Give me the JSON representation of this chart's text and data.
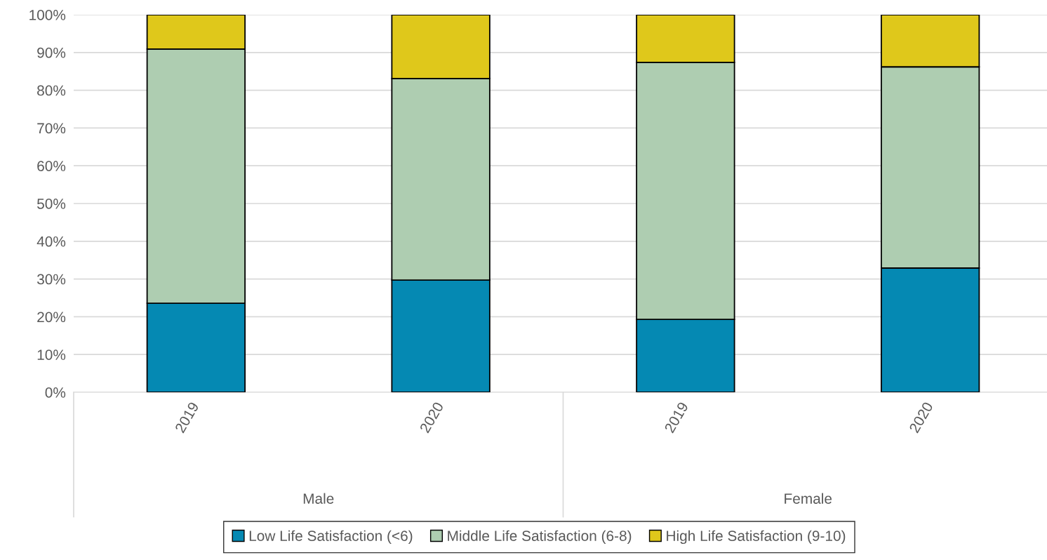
{
  "chart_data": {
    "type": "bar",
    "stacked": true,
    "categories": [
      "2019",
      "2020",
      "2019",
      "2020"
    ],
    "series": [
      {
        "name": "Low Life Satisfaction (<6)",
        "color": "#0589b3",
        "values": [
          23.6,
          29.7,
          19.3,
          32.9
        ]
      },
      {
        "name": "Middle Life Satisfaction (6-8)",
        "color": "#aecdb1",
        "values": [
          67.3,
          53.4,
          68.1,
          53.3
        ]
      },
      {
        "name": "High Life Satisfaction (9-10)",
        "color": "#dfc81b",
        "values": [
          9.1,
          16.9,
          12.6,
          13.8
        ]
      }
    ],
    "annotations": [
      "Male",
      "Female"
    ],
    "ylim": [
      0,
      100
    ],
    "yticks": [
      {
        "value": 0,
        "label": "0%"
      },
      {
        "value": 10,
        "label": "10%"
      },
      {
        "value": 20,
        "label": "20%"
      },
      {
        "value": 30,
        "label": "30%"
      },
      {
        "value": 40,
        "label": "40%"
      },
      {
        "value": 50,
        "label": "50%"
      },
      {
        "value": 60,
        "label": "60%"
      },
      {
        "value": 70,
        "label": "70%"
      },
      {
        "value": 80,
        "label": "80%"
      },
      {
        "value": 90,
        "label": "90%"
      },
      {
        "value": 100,
        "label": "100%"
      }
    ],
    "grid": "y",
    "legend": "bottom"
  }
}
